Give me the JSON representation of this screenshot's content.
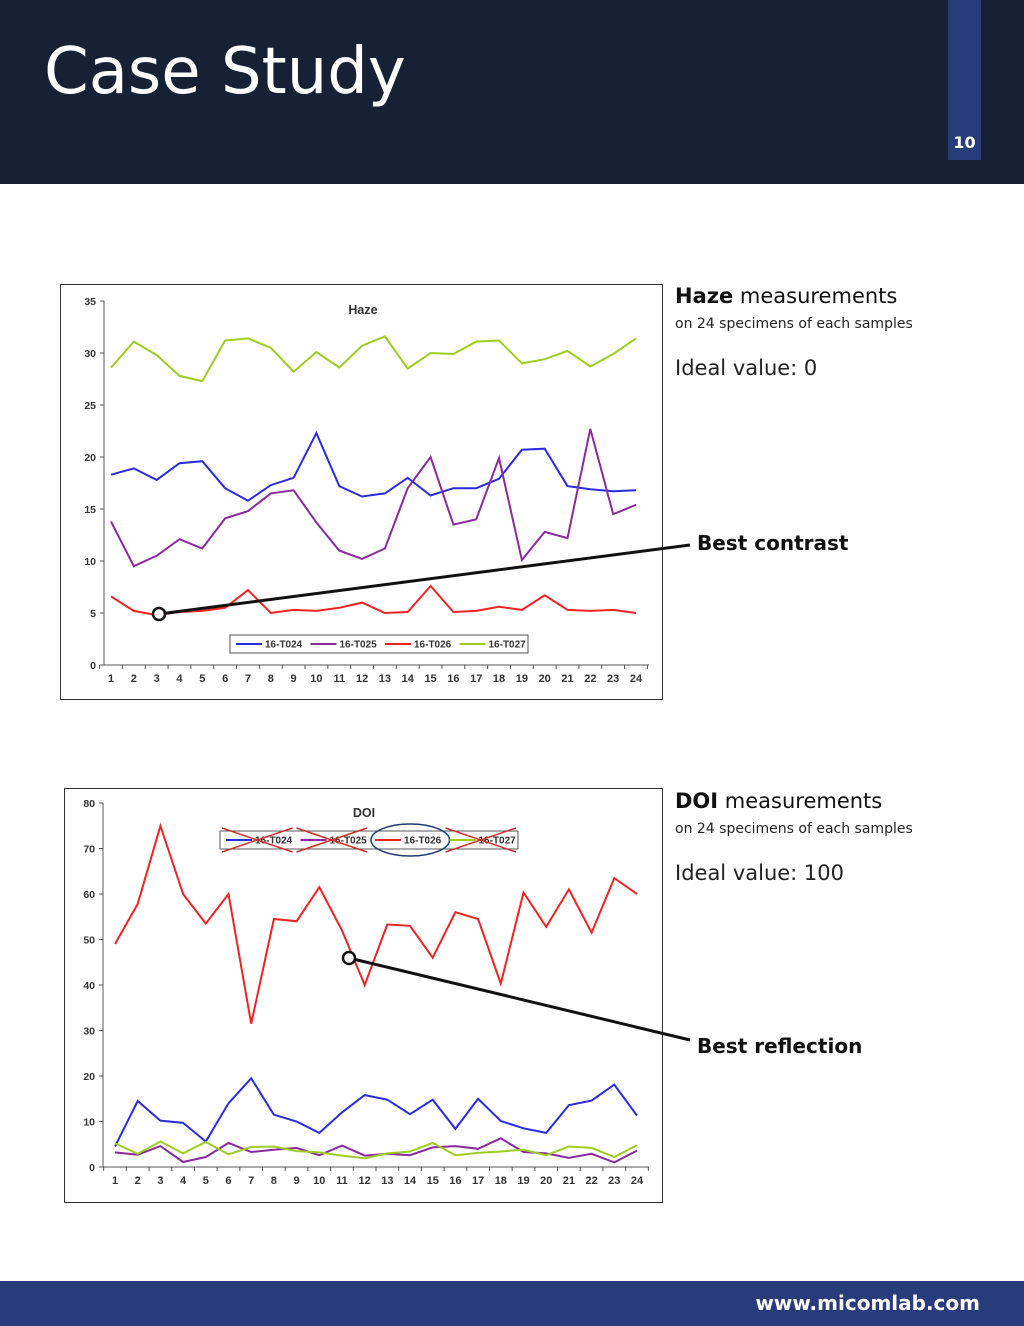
{
  "header": {
    "title": "Case Study",
    "page_number": "10"
  },
  "haze_panel": {
    "title_bold": "Haze",
    "title_rest": " measurements",
    "subtitle": "on 24 specimens of each samples",
    "ideal": "Ideal value: 0",
    "callout": "Best contrast"
  },
  "doi_panel": {
    "title_bold": "DOI",
    "title_rest": " measurements",
    "subtitle": "on 24 specimens of each samples",
    "ideal": "Ideal value: 100",
    "callout": "Best reflection"
  },
  "footer": {
    "url": "www.micomlab.com"
  },
  "colors": {
    "header_bg": "#172136",
    "accent": "#283c7c",
    "T024": "#2b2bdc",
    "T025": "#8a2a9e",
    "T026": "#ee2323",
    "T027": "#9fcc22"
  },
  "chart_data": [
    {
      "type": "line",
      "title": "Haze",
      "xlabel": "",
      "ylabel": "",
      "categories": [
        "1",
        "2",
        "3",
        "4",
        "5",
        "6",
        "7",
        "8",
        "9",
        "10",
        "11",
        "12",
        "13",
        "14",
        "15",
        "16",
        "17",
        "18",
        "19",
        "20",
        "21",
        "22",
        "23",
        "24"
      ],
      "yticks": [
        "0",
        "5",
        "10",
        "15",
        "20",
        "25",
        "30",
        "35"
      ],
      "ylim": [
        0,
        35
      ],
      "legend_position": "bottom-center",
      "series": [
        {
          "name": "16-T024",
          "color": "#2b2bdc",
          "values": [
            18.3,
            18.9,
            17.8,
            19.4,
            19.6,
            17.0,
            15.8,
            17.3,
            18.0,
            22.3,
            17.2,
            16.2,
            16.5,
            18.0,
            16.3,
            17.0,
            17.0,
            17.9,
            20.7,
            20.8,
            17.2,
            16.9,
            16.7,
            16.8
          ]
        },
        {
          "name": "16-T025",
          "color": "#8a2a9e",
          "values": [
            13.8,
            9.5,
            10.5,
            12.1,
            11.2,
            14.1,
            14.8,
            16.5,
            16.8,
            13.7,
            11.0,
            10.2,
            11.2,
            17.0,
            20.0,
            13.5,
            14.0,
            19.9,
            10.1,
            12.8,
            12.2,
            22.7,
            14.5,
            15.4
          ]
        },
        {
          "name": "16-T026",
          "color": "#ee2323",
          "values": [
            6.6,
            5.2,
            4.8,
            5.1,
            5.2,
            5.5,
            7.2,
            5.0,
            5.3,
            5.2,
            5.5,
            6.0,
            5.0,
            5.1,
            7.6,
            5.1,
            5.2,
            5.6,
            5.3,
            6.7,
            5.3,
            5.2,
            5.3,
            5.0
          ]
        },
        {
          "name": "16-T027",
          "color": "#9fcc22",
          "values": [
            28.6,
            31.1,
            29.8,
            27.8,
            27.3,
            31.2,
            31.4,
            30.5,
            28.2,
            30.1,
            28.6,
            30.7,
            31.6,
            28.5,
            30.0,
            29.9,
            31.1,
            31.2,
            29.0,
            29.4,
            30.2,
            28.7,
            29.9,
            31.4
          ]
        }
      ]
    },
    {
      "type": "line",
      "title": "DOI",
      "xlabel": "",
      "ylabel": "",
      "categories": [
        "1",
        "2",
        "3",
        "4",
        "5",
        "6",
        "7",
        "8",
        "9",
        "10",
        "11",
        "12",
        "13",
        "14",
        "15",
        "16",
        "17",
        "18",
        "19",
        "20",
        "21",
        "22",
        "23",
        "24"
      ],
      "yticks": [
        "0",
        "10",
        "20",
        "30",
        "40",
        "50",
        "60",
        "70",
        "80"
      ],
      "ylim": [
        0,
        80
      ],
      "legend_position": "top-center",
      "highlighted_series": "16-T026",
      "crossed_out_series": [
        "16-T024",
        "16-T025",
        "16-T027"
      ],
      "series": [
        {
          "name": "16-T024",
          "color": "#2b2bdc",
          "values": [
            4.5,
            14.5,
            10.2,
            9.7,
            5.6,
            14.0,
            19.5,
            11.5,
            10.0,
            7.5,
            12.0,
            15.8,
            14.8,
            11.6,
            14.8,
            8.4,
            15.0,
            10.1,
            8.5,
            7.5,
            13.6,
            14.6,
            18.1,
            11.3
          ]
        },
        {
          "name": "16-T025",
          "color": "#8a2a9e",
          "values": [
            3.2,
            2.7,
            4.6,
            1.1,
            2.2,
            5.3,
            3.3,
            3.8,
            4.2,
            2.6,
            4.7,
            2.5,
            2.9,
            2.6,
            4.3,
            4.6,
            4.0,
            6.3,
            3.3,
            3.0,
            2.0,
            2.9,
            1.0,
            3.6
          ]
        },
        {
          "name": "16-T026",
          "color": "#ee2323",
          "values": [
            49.0,
            57.8,
            75.0,
            60.0,
            53.5,
            60.0,
            31.5,
            54.5,
            54.0,
            61.5,
            52.0,
            40.0,
            53.3,
            53.0,
            46.0,
            56.0,
            54.5,
            40.3,
            60.3,
            52.8,
            61.0,
            51.5,
            63.5,
            60.0
          ]
        },
        {
          "name": "16-T027",
          "color": "#9fcc22",
          "values": [
            5.2,
            2.9,
            5.6,
            3.0,
            5.5,
            2.8,
            4.4,
            4.5,
            3.5,
            3.2,
            2.5,
            1.9,
            3.0,
            3.4,
            5.3,
            2.6,
            3.1,
            3.4,
            3.8,
            2.6,
            4.5,
            4.2,
            2.2,
            4.8
          ]
        }
      ]
    }
  ]
}
